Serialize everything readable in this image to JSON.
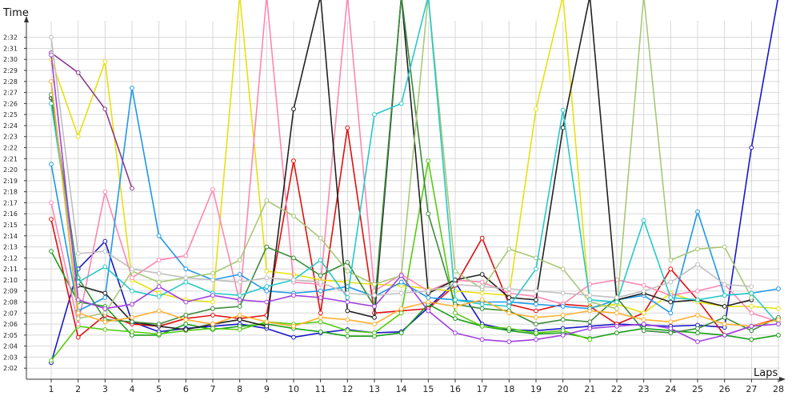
{
  "chart_data": {
    "type": "line",
    "title": "",
    "xlabel": "Laps",
    "ylabel": "Time",
    "x": [
      1,
      2,
      3,
      4,
      5,
      6,
      7,
      8,
      9,
      10,
      11,
      12,
      13,
      14,
      15,
      16,
      17,
      18,
      19,
      20,
      21,
      22,
      23,
      24,
      25,
      26,
      27,
      28
    ],
    "x_tick_labels": [
      "1",
      "2",
      "3",
      "4",
      "5",
      "6",
      "7",
      "8",
      "9",
      "10",
      "11",
      "12",
      "13",
      "14",
      "15",
      "16",
      "17",
      "18",
      "19",
      "20",
      "21",
      "22",
      "23",
      "24",
      "25",
      "26",
      "27",
      "28"
    ],
    "y_tick_labels": [
      "2:02",
      "2:03",
      "2:04",
      "2:05",
      "2:06",
      "2:07",
      "2:08",
      "2:09",
      "2:10",
      "2:11",
      "2:12",
      "2:13",
      "2:14",
      "2:15",
      "2:16",
      "2:17",
      "2:18",
      "2:19",
      "2:20",
      "2:21",
      "2:22",
      "2:23",
      "2:24",
      "2:25",
      "2:26",
      "2:27",
      "2:28",
      "2:29",
      "2:30",
      "2:31",
      "2:32"
    ],
    "y_unit": "seconds",
    "ylim": [
      121.0,
      153.5
    ],
    "grid": true,
    "legend": "none",
    "series": [
      {
        "color": "#1818c8",
        "values": [
          122.5,
          131.0,
          133.5,
          126.2,
          125.3,
          125.6,
          125.8,
          126.0,
          125.6,
          124.8,
          125.2,
          125.5,
          125.2,
          125.3,
          127.5,
          129.8,
          126.0,
          125.5,
          125.4,
          125.6,
          125.8,
          126.0,
          125.9,
          125.8,
          125.9,
          125.7,
          142.0,
          160
        ]
      },
      {
        "color": "#e01010",
        "values": [
          135.5,
          124.8,
          126.8,
          126.0,
          125.8,
          126.5,
          126.8,
          126.5,
          126.8,
          140.8,
          127.0,
          143.8,
          127.0,
          127.2,
          127.4,
          129.5,
          133.8,
          127.8,
          127.2,
          127.8,
          127.6,
          126.0,
          127.0,
          131.0,
          128.2,
          125.0,
          125.8,
          126.5
        ]
      },
      {
        "color": "#19a019",
        "values": [
          132.6,
          128.0,
          127.6,
          125.0,
          125.0,
          126.0,
          125.5,
          125.8,
          126.0,
          125.6,
          125.3,
          124.9,
          124.9,
          125.2,
          127.8,
          126.5,
          125.8,
          125.4,
          125.1,
          125.2,
          124.7,
          125.2,
          125.6,
          125.4,
          125.2,
          125.0,
          124.6,
          125.0
        ]
      },
      {
        "color": "#55cc10",
        "values": [
          122.7,
          125.8,
          125.5,
          125.3,
          125.1,
          125.4,
          125.6,
          125.5,
          126.2,
          126.0,
          126.2,
          125.4,
          125.2,
          127.0,
          140.8,
          127.0,
          125.8,
          125.6,
          125.2,
          125.4,
          124.6,
          null,
          null,
          null,
          null,
          null,
          null,
          null
        ]
      },
      {
        "color": "#e8e010",
        "values": [
          150.0,
          143.0,
          149.8,
          130.0,
          128.8,
          128.2,
          128.0,
          160,
          130.8,
          130.5,
          130.0,
          129.8,
          129.6,
          129.5,
          129.2,
          129.0,
          128.8,
          128.6,
          145.5,
          160,
          127.5,
          127.8,
          127.0,
          128.8,
          128.0,
          127.6,
          127.6,
          127.4
        ]
      },
      {
        "color": "#ff86b4",
        "values": [
          137.0,
          126.0,
          138.0,
          130.2,
          131.8,
          132.2,
          138.2,
          128.0,
          160,
          129.8,
          129.6,
          160,
          129.0,
          130.5,
          129.0,
          130.0,
          129.8,
          128.8,
          128.5,
          127.8,
          129.6,
          130.0,
          129.5,
          128.6,
          129.0,
          129.6,
          127.0,
          126.2
        ]
      },
      {
        "color": "#1e98e8",
        "values": [
          140.5,
          127.2,
          128.4,
          147.4,
          134.0,
          131.0,
          130.0,
          130.5,
          129.0,
          128.8,
          129.0,
          129.4,
          128.5,
          129.8,
          128.4,
          128.2,
          128.0,
          128.0,
          127.8,
          127.6,
          127.4,
          128.2,
          128.6,
          127.0,
          136.2,
          128.6,
          128.8,
          129.2
        ]
      },
      {
        "color": "#8c3c8c",
        "values": [
          150.6,
          148.8,
          145.5,
          138.3,
          null,
          null,
          null,
          null,
          null,
          null,
          null,
          null,
          null,
          null,
          null,
          null,
          null,
          null,
          null,
          null,
          null,
          null,
          null,
          null,
          null,
          null,
          null,
          null
        ]
      },
      {
        "color": "#222222",
        "values": [
          146.5,
          129.5,
          128.8,
          126.2,
          125.8,
          125.5,
          126.0,
          126.4,
          125.8,
          145.5,
          160,
          127.2,
          126.6,
          160,
          128.8,
          130.0,
          130.5,
          128.4,
          128.2,
          143.8,
          160,
          128.2,
          128.8,
          128.0,
          128.2,
          127.6,
          128.2,
          null
        ]
      },
      {
        "color": "#3a8c3a",
        "values": [
          146.8,
          130.2,
          126.4,
          126.2,
          126.0,
          126.8,
          127.4,
          127.6,
          133.0,
          132.0,
          130.4,
          131.6,
          127.6,
          160,
          136.0,
          127.8,
          127.4,
          127.2,
          126.0,
          126.4,
          126.2,
          128.4,
          125.4,
          125.2,
          125.6,
          126.6,
          125.4,
          126.6
        ]
      },
      {
        "color": "#a8c878",
        "values": [
          148.0,
          126.5,
          127.0,
          130.8,
          129.8,
          130.2,
          130.6,
          131.8,
          137.2,
          135.8,
          133.8,
          130.8,
          129.6,
          130.4,
          160,
          130.8,
          129.2,
          132.8,
          132.0,
          131.0,
          128.0,
          127.4,
          160,
          131.8,
          132.8,
          133.0,
          128.4,
          null
        ]
      },
      {
        "color": "#28c8c8",
        "values": [
          146.0,
          129.8,
          131.2,
          129.0,
          128.5,
          129.8,
          128.8,
          128.6,
          129.4,
          130.0,
          131.8,
          128.4,
          145.0,
          146.0,
          160,
          128.2,
          127.8,
          127.6,
          131.0,
          145.4,
          128.2,
          128.0,
          135.4,
          128.4,
          128.2,
          128.6,
          128.8,
          126.0
        ]
      },
      {
        "color": "#ffb030",
        "values": [
          148.0,
          127.0,
          126.2,
          126.6,
          127.2,
          126.4,
          126.0,
          126.8,
          126.2,
          125.8,
          126.6,
          126.4,
          126.0,
          127.4,
          128.0,
          127.6,
          128.2,
          127.0,
          126.6,
          126.8,
          127.2,
          127.0,
          126.4,
          126.2,
          126.8,
          126.0,
          125.8,
          126.4
        ]
      },
      {
        "color": "#a040e0",
        "values": [
          150.4,
          128.2,
          127.4,
          127.8,
          129.4,
          128.0,
          128.6,
          128.2,
          128.0,
          128.6,
          128.4,
          128.0,
          127.6,
          130.4,
          127.2,
          125.2,
          124.6,
          124.4,
          124.6,
          125.0,
          125.6,
          125.8,
          126.0,
          125.6,
          124.4,
          125.0,
          125.8,
          126.0
        ]
      },
      {
        "color": "#c0c0c0",
        "values": [
          152.0,
          132.4,
          132.6,
          131.0,
          130.6,
          130.2,
          130.0,
          129.8,
          130.2,
          130.0,
          129.8,
          128.8,
          128.6,
          128.8,
          129.0,
          129.6,
          129.4,
          129.2,
          129.0,
          128.8,
          128.6,
          128.4,
          129.0,
          129.8,
          131.4,
          129.6,
          129.4,
          null
        ]
      }
    ]
  }
}
